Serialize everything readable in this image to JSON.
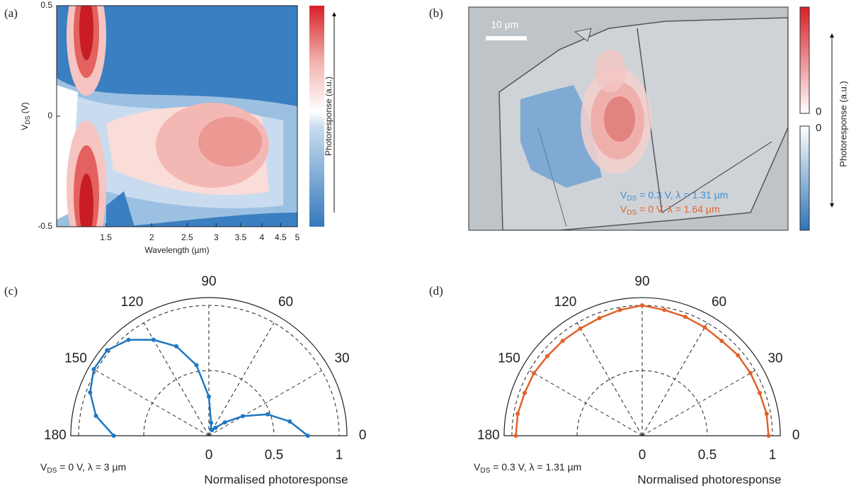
{
  "panels": {
    "a": {
      "label": "(a)",
      "ylabel": {
        "main": "V",
        "sub": "DS",
        "unit": "(V)"
      },
      "xlabel": "Wavelength (µm)",
      "xscale": "log",
      "xlim": [
        1.1,
        5
      ],
      "ylim": [
        -0.5,
        0.5
      ],
      "xticks": [
        1.5,
        2,
        2.5,
        3,
        3.5,
        4,
        4.5,
        5
      ],
      "yticks": [
        0.5,
        0,
        -0.5
      ],
      "colorbar_label": "Photoresponse (a.u.)"
    },
    "b": {
      "label": "(b)",
      "scale_bar": "10 µm",
      "legend": [
        {
          "main": "V",
          "sub": "DS",
          "rest": "= 0.3 V, λ = 1.31 µm",
          "color": "#3f8fd2"
        },
        {
          "main": "V",
          "sub": "DS",
          "rest": "= 0 V, λ = 1.64 µm",
          "color": "#e2632b"
        }
      ],
      "colorbar_ticks": [
        0,
        0
      ],
      "colorbar_label": "Photoresponse (a.u.)"
    },
    "c": {
      "label": "(c)",
      "color": "#1f78c2",
      "theta": [
        0,
        10,
        20,
        30,
        40,
        50,
        60,
        70,
        80,
        90,
        100,
        110,
        120,
        130,
        140,
        150,
        160,
        170,
        180
      ],
      "r": [
        0.76,
        0.63,
        0.48,
        0.3,
        0.16,
        0.08,
        0.05,
        0.05,
        0.1,
        0.3,
        0.55,
        0.73,
        0.85,
        0.96,
        1.02,
        1.02,
        0.97,
        0.88,
        0.73
      ],
      "rlim": [
        0,
        1.06
      ],
      "rticks": [
        0,
        0.5,
        1
      ],
      "thetaticks": [
        0,
        30,
        60,
        90,
        120,
        150,
        180
      ],
      "caption": {
        "main": "V",
        "sub": "DS",
        "rest": "= 0 V, λ = 3 µm"
      },
      "xlabel": "Normalised photoresponse"
    },
    "d": {
      "label": "(d)",
      "color": "#e0622a",
      "theta": [
        0,
        10,
        20,
        30,
        40,
        50,
        60,
        70,
        80,
        90,
        100,
        110,
        120,
        130,
        140,
        150,
        160,
        170,
        180
      ],
      "r": [
        0.97,
        0.97,
        0.96,
        0.96,
        0.96,
        0.95,
        0.96,
        0.97,
        0.98,
        1.0,
        0.98,
        0.96,
        0.95,
        0.95,
        0.95,
        0.96,
        0.96,
        0.97,
        0.97
      ],
      "rlim": [
        0,
        1.06
      ],
      "rticks": [
        0,
        0.5,
        1
      ],
      "thetaticks": [
        0,
        30,
        60,
        90,
        120,
        150,
        180
      ],
      "caption": {
        "main": "V",
        "sub": "DS",
        "rest": "= 0.3 V, λ = 1.31 µm"
      },
      "xlabel": "Normalised photoresponse"
    }
  }
}
